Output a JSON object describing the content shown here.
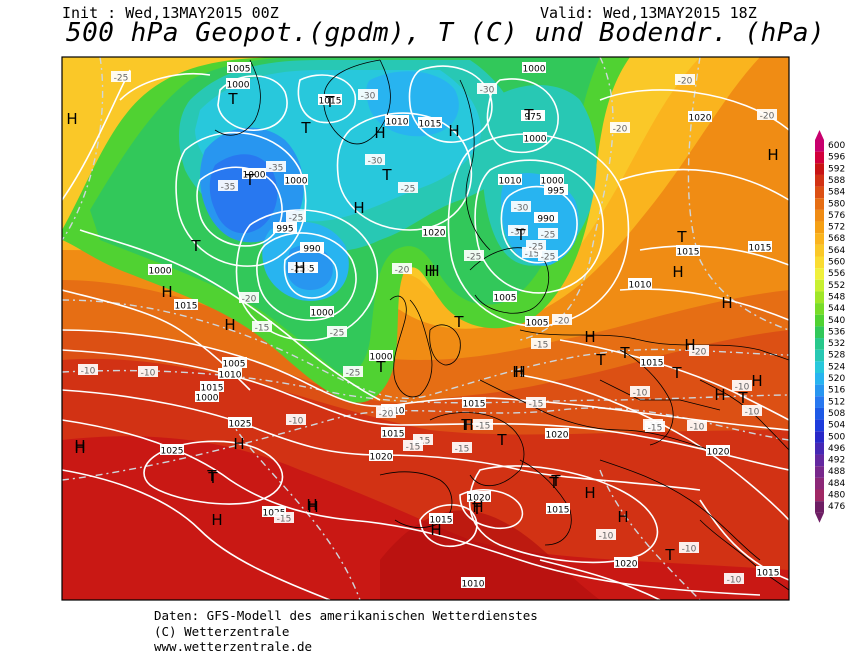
{
  "header": {
    "init": "Init : Wed,13MAY2015 00Z",
    "valid": "Valid: Wed,13MAY2015 18Z",
    "title": "500 hPa Geopot.(gpdm), T (C) und Bodendr. (hPa)"
  },
  "footer": {
    "line1": "Daten: GFS-Modell des amerikanischen Wetterdienstes",
    "line2": "(C) Wetterzentrale",
    "line3": "www.wetterzentrale.de"
  },
  "legend": {
    "values": [
      "600",
      "596",
      "592",
      "588",
      "584",
      "580",
      "576",
      "572",
      "568",
      "564",
      "560",
      "556",
      "552",
      "548",
      "544",
      "540",
      "536",
      "532",
      "528",
      "524",
      "520",
      "516",
      "512",
      "508",
      "504",
      "500",
      "496",
      "492",
      "488",
      "484",
      "480",
      "476"
    ],
    "colors": [
      "#c8006e",
      "#d2003c",
      "#c81414",
      "#d23214",
      "#dc5014",
      "#e66e14",
      "#f08c14",
      "#f5a014",
      "#fab41e",
      "#fac828",
      "#fadc32",
      "#f0f03c",
      "#c8f032",
      "#a0e628",
      "#78dc28",
      "#50d232",
      "#32c85a",
      "#28c88c",
      "#28c8b4",
      "#28c8dc",
      "#28b4f0",
      "#2896f0",
      "#2878f0",
      "#1e5ae6",
      "#1e3cdc",
      "#2828c8",
      "#4628b4",
      "#6428a0",
      "#78288c",
      "#8c2878",
      "#a02864",
      "#6e1e64"
    ]
  },
  "pressure_labels": [
    "1005",
    "1000",
    "1015",
    "1010",
    "1015",
    "975",
    "1000",
    "1000",
    "1000",
    "1000",
    "995",
    "995",
    "990",
    "1020",
    "990",
    "985",
    "1000",
    "1000",
    "1005",
    "1010",
    "1010",
    "1005",
    "1010",
    "1015",
    "1020",
    "1025",
    "1025",
    "1015",
    "1015",
    "1020",
    "1020",
    "1020",
    "1015",
    "1025",
    "1015",
    "1020",
    "1020",
    "1010",
    "1015",
    "1005",
    "1000",
    "1000",
    "1015",
    "1015",
    "1015",
    "1015",
    "1010",
    "1000",
    "1005"
  ],
  "temp_labels": [
    "-25",
    "-30",
    "-30",
    "-35",
    "-35",
    "-30",
    "-25",
    "-25",
    "-30",
    "-30",
    "-20",
    "-20",
    "-15",
    "-15",
    "-25",
    "-25",
    "-25",
    "-20",
    "-20",
    "-20",
    "-15",
    "-10",
    "-10",
    "-10",
    "-10",
    "-15",
    "-15",
    "-15",
    "-15",
    "-15",
    "-10",
    "-10",
    "-15",
    "-10",
    "-10",
    "-20",
    "-20",
    "-25",
    "-25",
    "-15",
    "-10",
    "-25",
    "-10",
    "-20",
    "-25",
    "-15"
  ],
  "centers": [
    "H",
    "T",
    "T",
    "T",
    "H",
    "H",
    "T",
    "T",
    "T",
    "H",
    "T",
    "H",
    "H",
    "H",
    "T",
    "H",
    "T",
    "T",
    "H",
    "T",
    "H",
    "H",
    "H",
    "H",
    "T",
    "T",
    "T",
    "H",
    "T",
    "T",
    "H",
    "H",
    "H",
    "T",
    "H",
    "H",
    "H",
    "T",
    "T",
    "H",
    "H",
    "T",
    "H",
    "H",
    "H",
    "T",
    "T",
    "H",
    "T",
    "H",
    "H",
    "H"
  ]
}
